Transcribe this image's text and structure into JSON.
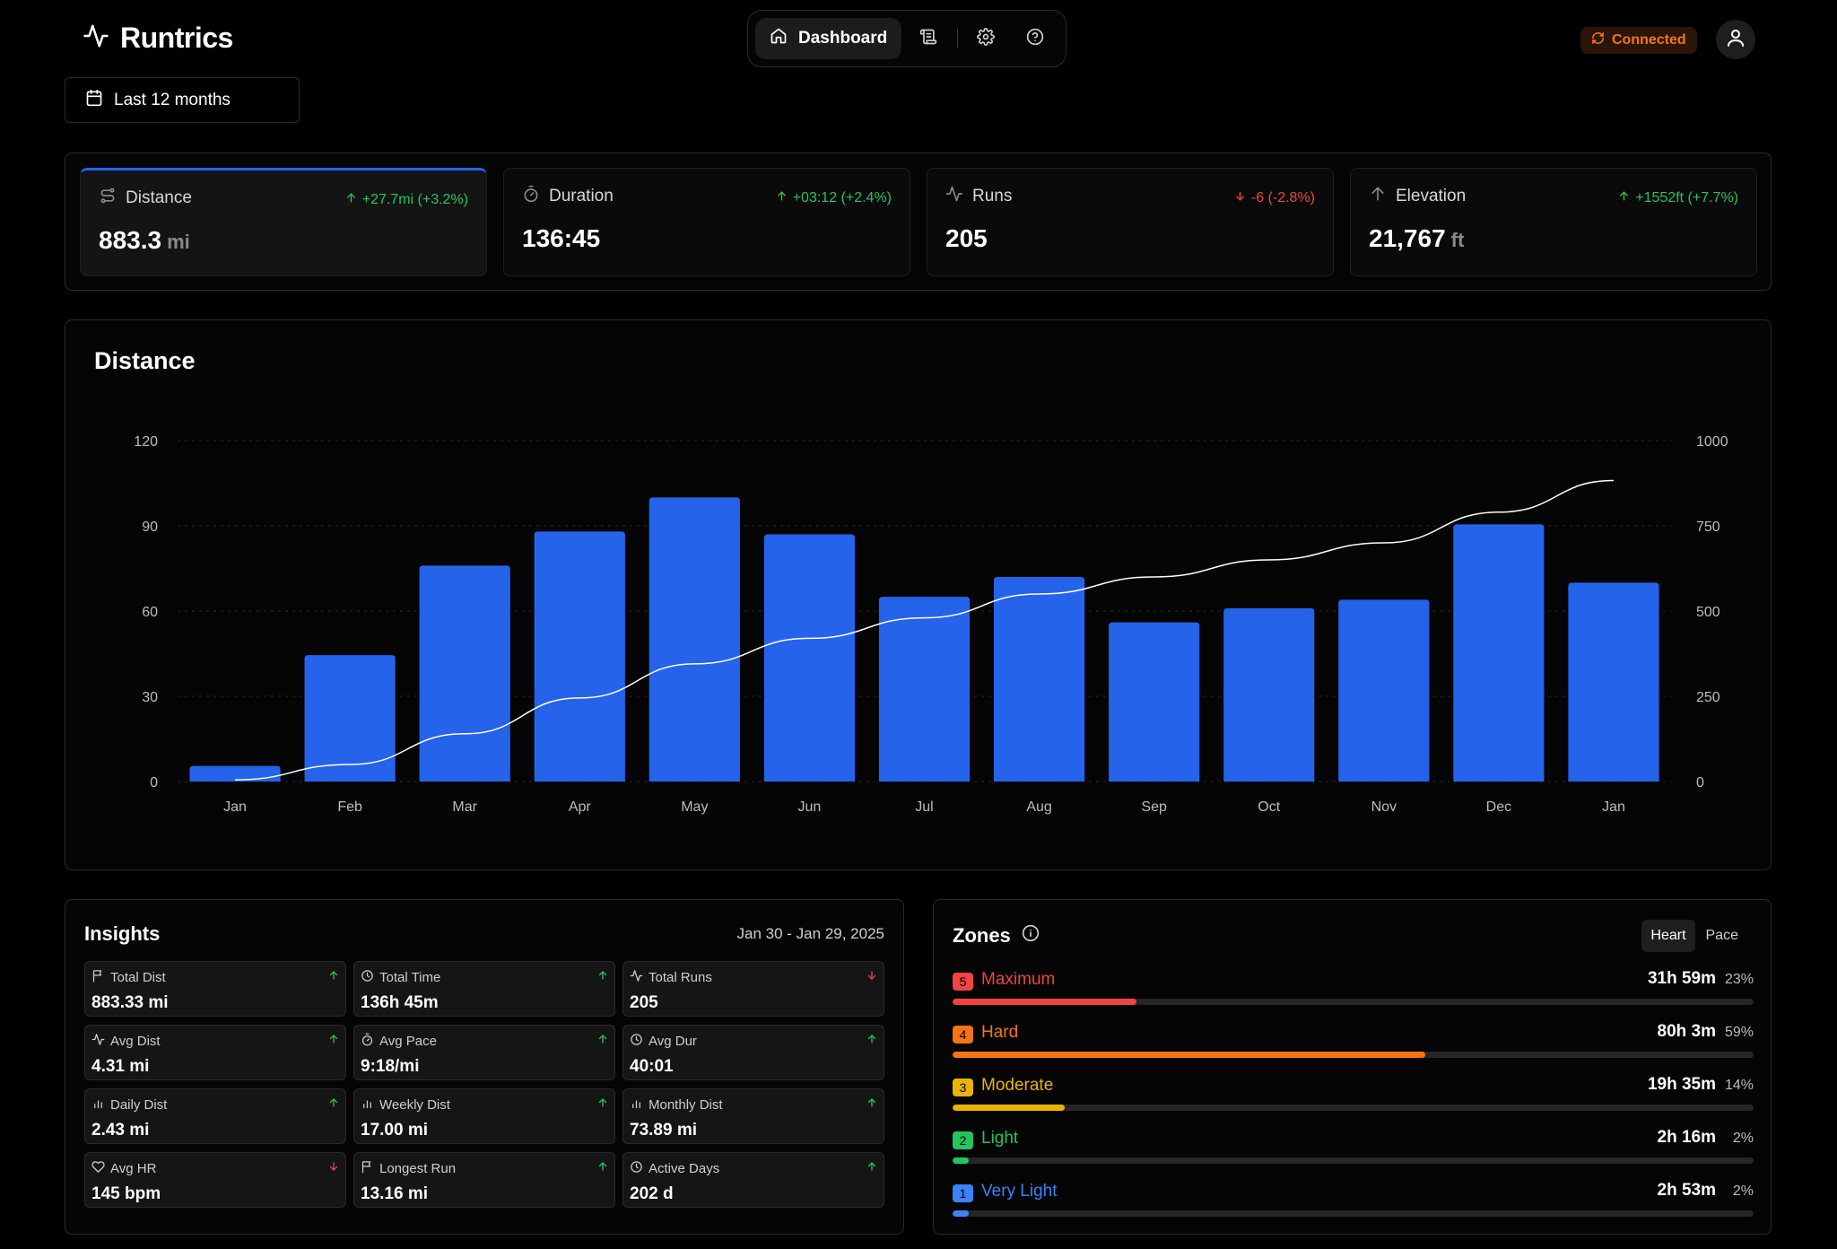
{
  "app": {
    "name": "Runtrics"
  },
  "nav": {
    "active_label": "Dashboard"
  },
  "status": {
    "label": "Connected",
    "color": "#f97316"
  },
  "date_range": {
    "label": "Last 12 months"
  },
  "stats": [
    {
      "label": "Distance",
      "icon": "route-icon",
      "delta": "+27.7mi (+3.2%)",
      "trend": "up",
      "value": "883.3",
      "unit": "mi"
    },
    {
      "label": "Duration",
      "icon": "stopwatch-icon",
      "delta": "+03:12 (+2.4%)",
      "trend": "up",
      "value": "136:45",
      "unit": ""
    },
    {
      "label": "Runs",
      "icon": "activity-icon",
      "delta": "-6 (-2.8%)",
      "trend": "down",
      "value": "205",
      "unit": ""
    },
    {
      "label": "Elevation",
      "icon": "arrow-up-icon",
      "delta": "+1552ft (+7.7%)",
      "trend": "up",
      "value": "21,767",
      "unit": "ft"
    }
  ],
  "chart_data": {
    "type": "bar",
    "title": "Distance",
    "categories": [
      "Jan",
      "Feb",
      "Mar",
      "Apr",
      "May",
      "Jun",
      "Jul",
      "Aug",
      "Sep",
      "Oct",
      "Nov",
      "Dec",
      "Jan"
    ],
    "series": [
      {
        "type": "bar",
        "axis": "left",
        "color": "#2563eb",
        "values": [
          5.5,
          44.5,
          76,
          88,
          100,
          87,
          65,
          72,
          56,
          61,
          64,
          90.5,
          70
        ]
      },
      {
        "type": "line",
        "axis": "right",
        "color": "#ffffff",
        "values": [
          5,
          50,
          140,
          245,
          345,
          420,
          480,
          550,
          600,
          650,
          700,
          790,
          883
        ]
      }
    ],
    "y_left": {
      "ticks": [
        0,
        30,
        60,
        90,
        120
      ],
      "range": [
        0,
        120
      ]
    },
    "y_right": {
      "ticks": [
        0,
        250,
        500,
        750,
        1000
      ],
      "range": [
        0,
        1000
      ]
    },
    "grid": "horizontal dashed"
  },
  "insights": {
    "title": "Insights",
    "range": "Jan 30 - Jan 29, 2025",
    "items": [
      {
        "label": "Total Dist",
        "icon": "flag-icon",
        "value": "883.33 mi",
        "trend": "up"
      },
      {
        "label": "Total Time",
        "icon": "clock-icon",
        "value": "136h 45m",
        "trend": "up"
      },
      {
        "label": "Total Runs",
        "icon": "activity-icon",
        "value": "205",
        "trend": "down"
      },
      {
        "label": "Avg Dist",
        "icon": "activity-icon",
        "value": "4.31 mi",
        "trend": "up"
      },
      {
        "label": "Avg Pace",
        "icon": "stopwatch-icon",
        "value": "9:18/mi",
        "trend": "up"
      },
      {
        "label": "Avg Dur",
        "icon": "clock-icon",
        "value": "40:01",
        "trend": "up"
      },
      {
        "label": "Daily Dist",
        "icon": "bar-chart-icon",
        "value": "2.43 mi",
        "trend": "up"
      },
      {
        "label": "Weekly Dist",
        "icon": "bar-chart-icon",
        "value": "17.00 mi",
        "trend": "up"
      },
      {
        "label": "Monthly Dist",
        "icon": "bar-chart-icon",
        "value": "73.89 mi",
        "trend": "up"
      },
      {
        "label": "Avg HR",
        "icon": "heart-icon",
        "value": "145 bpm",
        "trend": "down"
      },
      {
        "label": "Longest Run",
        "icon": "flag-icon",
        "value": "13.16 mi",
        "trend": "up"
      },
      {
        "label": "Active Days",
        "icon": "clock-icon",
        "value": "202 d",
        "trend": "up"
      }
    ]
  },
  "zones": {
    "title": "Zones",
    "toggle": [
      "Heart",
      "Pace"
    ],
    "active_toggle": "Heart",
    "items": [
      {
        "num": "5",
        "name": "Maximum",
        "time": "31h 59m",
        "pct": "23%",
        "fill": 0.23,
        "color": "#ef4444"
      },
      {
        "num": "4",
        "name": "Hard",
        "time": "80h 3m",
        "pct": "59%",
        "fill": 0.59,
        "color": "#f97316"
      },
      {
        "num": "3",
        "name": "Moderate",
        "time": "19h 35m",
        "pct": "14%",
        "fill": 0.14,
        "color": "#eab308"
      },
      {
        "num": "2",
        "name": "Light",
        "time": "2h 16m",
        "pct": "2%",
        "fill": 0.02,
        "color": "#22c55e"
      },
      {
        "num": "1",
        "name": "Very Light",
        "time": "2h 53m",
        "pct": "2%",
        "fill": 0.02,
        "color": "#3b82f6"
      }
    ]
  }
}
